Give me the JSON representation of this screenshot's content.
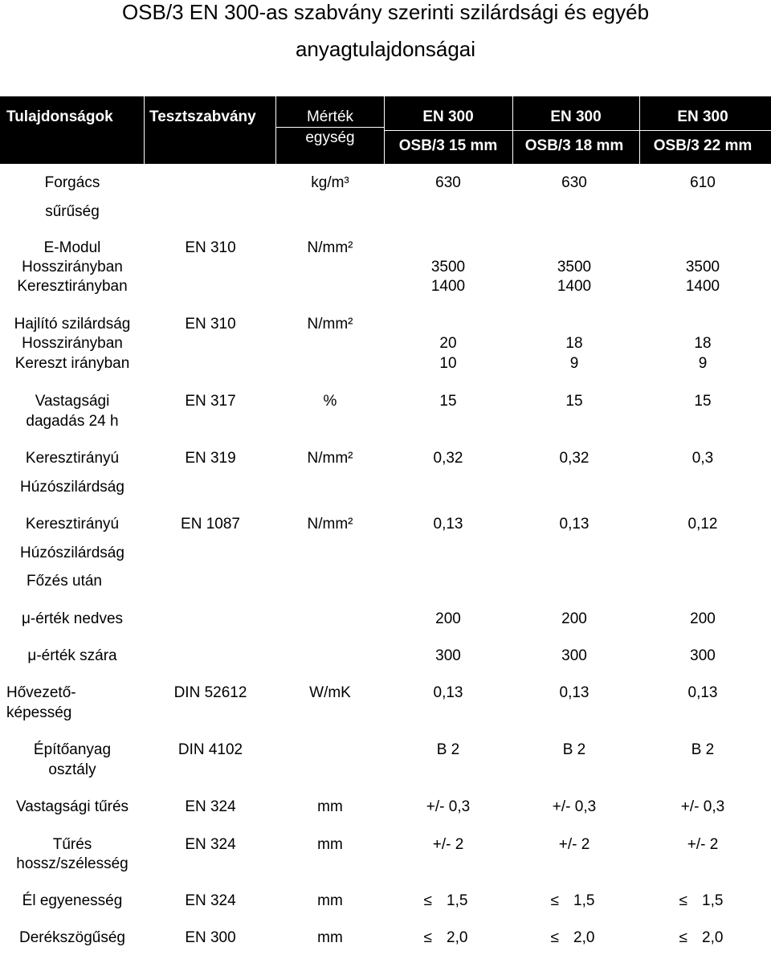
{
  "title": {
    "line1": "OSB/3  EN 300-as szabvány szerinti szilárdsági és egyéb",
    "line2": "anyagtulajdonságai"
  },
  "header": {
    "col1": "Tulajdonságok",
    "col2": "Tesztszabvány",
    "col3_line1": "Mérték",
    "col3_line2": "egység",
    "col4_line1": "EN 300",
    "col4_line2": "OSB/3 15 mm",
    "col5_line1": "EN 300",
    "col5_line2": "OSB/3 18 mm",
    "col6_line1": "EN 300",
    "col6_line2": "OSB/3 22 mm"
  },
  "rows": {
    "r1": {
      "p1": "Forgács",
      "p2": "sűrűség",
      "unit": "kg/m³",
      "v1": "630",
      "v2": "630",
      "v3": "610"
    },
    "r2": {
      "p1": "E-Modul",
      "p2": "Hosszirányban",
      "p3": "Keresztirányban",
      "std": "EN 310",
      "unit": "N/mm²",
      "v1a": "3500",
      "v1b": "1400",
      "v2a": "3500",
      "v2b": "1400",
      "v3a": "3500",
      "v3b": "1400"
    },
    "r3": {
      "p1": "Hajlító szilárdság",
      "p2": "Hosszirányban",
      "p3": "Kereszt irányban",
      "std": "EN 310",
      "unit": "N/mm²",
      "v1a": "20",
      "v1b": "10",
      "v2a": "18",
      "v2b": "9",
      "v3a": "18",
      "v3b": "9"
    },
    "r4": {
      "p1": "Vastagsági",
      "p2": "dagadás 24 h",
      "std": "EN 317",
      "unit": "%",
      "v1": "15",
      "v2": "15",
      "v3": "15"
    },
    "r5": {
      "p1": "Keresztirányú",
      "p2": "Húzószilárdság",
      "std": "EN 319",
      "unit": "N/mm²",
      "v1": "0,32",
      "v2": "0,32",
      "v3": "0,3"
    },
    "r6": {
      "p1": "Keresztirányú",
      "p2": "Húzószilárdság",
      "p3": "Főzés után",
      "std": "EN 1087",
      "unit": "N/mm²",
      "v1": "0,13",
      "v2": "0,13",
      "v3": "0,12"
    },
    "r7": {
      "p1": "μ-érték nedves",
      "v1": "200",
      "v2": "200",
      "v3": "200"
    },
    "r8": {
      "p1": "μ-érték szára",
      "v1": "300",
      "v2": "300",
      "v3": "300"
    },
    "r9": {
      "p1": "Hővezető-",
      "p2": "képesség",
      "std": "DIN 52612",
      "unit": "W/mK",
      "v1": "0,13",
      "v2": "0,13",
      "v3": "0,13"
    },
    "r10": {
      "p1": "Építőanyag",
      "p2": "osztály",
      "std": "DIN 4102",
      "v1": "B 2",
      "v2": "B 2",
      "v3": "B 2"
    },
    "r11": {
      "p1": "Vastagsági tűrés",
      "std": "EN 324",
      "unit": "mm",
      "v1": "+/- 0,3",
      "v2": "+/- 0,3",
      "v3": "+/- 0,3"
    },
    "r12": {
      "p1": "Tűrés",
      "p2": "hossz/szélesség",
      "std": "EN 324",
      "unit": "mm",
      "v1": "+/- 2",
      "v2": "+/- 2",
      "v3": "+/- 2"
    },
    "r13": {
      "p1": "Él egyenesség",
      "std": "EN 324",
      "unit": "mm",
      "le": "≤",
      "v1": "1,5",
      "v2": "1,5",
      "v3": "1,5"
    },
    "r14": {
      "p1": "Derékszögűség",
      "std": "EN 300",
      "unit": "mm",
      "le": "≤",
      "v1": "2,0",
      "v2": "2,0",
      "v3": "2,0"
    }
  }
}
